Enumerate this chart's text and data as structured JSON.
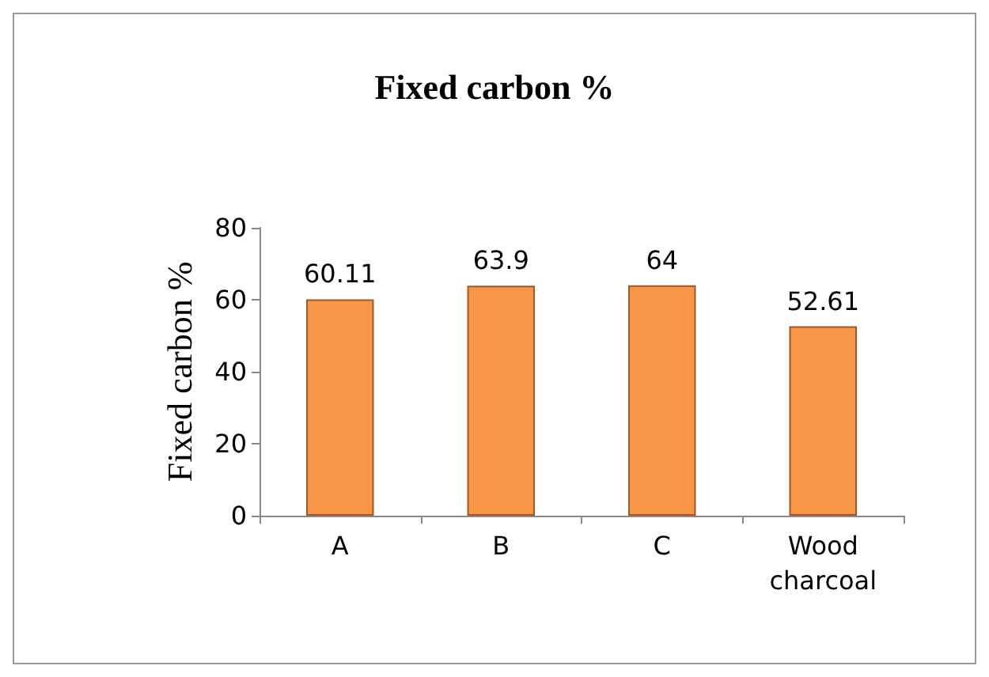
{
  "chart_data": {
    "type": "bar",
    "title": "Fixed carbon %",
    "ylabel": "Fixed carbon %",
    "categories": [
      "A",
      "B",
      "C",
      "Wood\ncharcoal"
    ],
    "values": [
      60.11,
      63.9,
      64,
      52.61
    ],
    "color": "#f79646",
    "ylim": [
      0,
      80
    ],
    "yticks": [
      0,
      20,
      40,
      60,
      80
    ],
    "grid": false,
    "data_labels": true
  }
}
